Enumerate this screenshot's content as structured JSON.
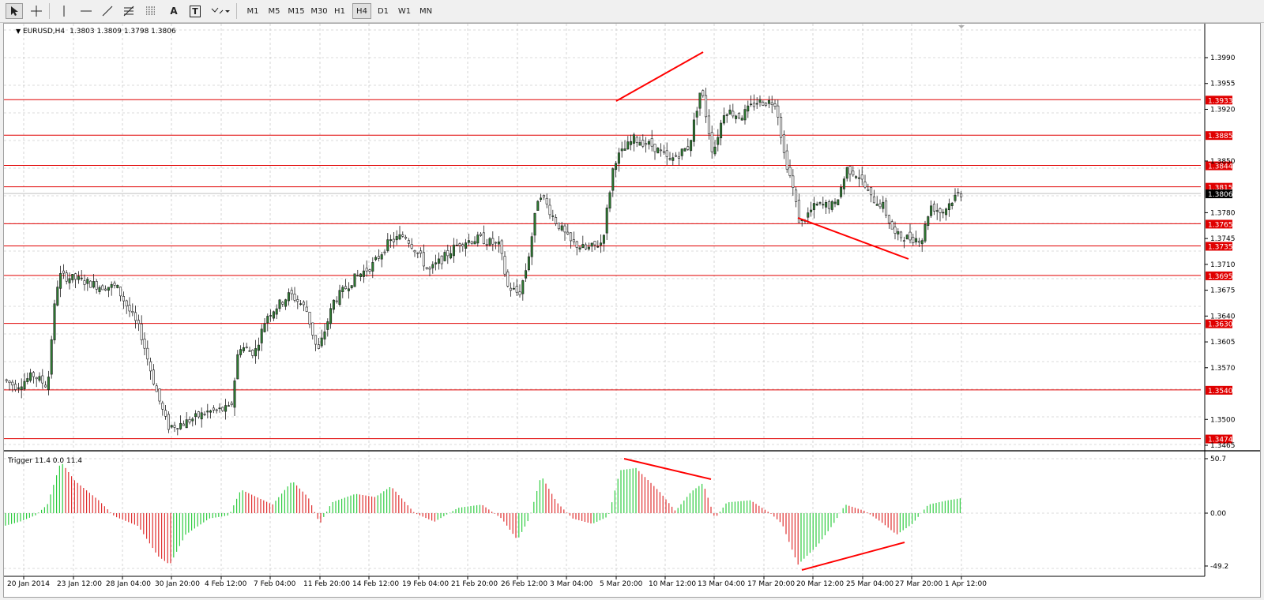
{
  "toolbar": {
    "timeframes": [
      "M1",
      "M5",
      "M15",
      "M30",
      "H1",
      "H4",
      "D1",
      "W1",
      "MN"
    ],
    "active_timeframe": "H4",
    "tools": [
      "cursor-icon",
      "crosshair-icon",
      "vertical-line-icon",
      "horizontal-line-icon",
      "trendline-icon",
      "fibonacci-icon",
      "fibonacci-fan-icon",
      "text-icon",
      "text-label-icon",
      "arrows-icon"
    ],
    "text_tool_label": "A",
    "label_tool_label": "T"
  },
  "main_chart": {
    "symbol_label": "EURUSD,H4",
    "ohlc": "1.3803 1.3809 1.3798 1.3806",
    "price_ticks": [
      "1.3990",
      "1.3955",
      "1.3920",
      "1.3850",
      "1.3780",
      "1.3745",
      "1.3710",
      "1.3675",
      "1.3640",
      "1.3605",
      "1.3570",
      "1.3500",
      "1.3465"
    ],
    "sr_levels": [
      "1.3933",
      "1.3885",
      "1.3844",
      "1.3815",
      "1.3765",
      "1.3735",
      "1.3695",
      "1.3630",
      "1.3540",
      "1.3474"
    ],
    "current_price": "1.3806",
    "colors": {
      "bull": "#2e7d32",
      "bear": "#c62828",
      "level": "#e00000",
      "grid": "#b8b8b8"
    }
  },
  "indicator": {
    "label": "Trigger 11.4 0.0 11.4",
    "ticks": [
      "50.7",
      "0.00",
      "-49.2"
    ],
    "colors": {
      "up": "#2ecc40",
      "down": "#e03030"
    }
  },
  "time_axis": [
    "20 Jan 2014",
    "23 Jan 12:00",
    "28 Jan 04:00",
    "30 Jan 20:00",
    "4 Feb 12:00",
    "7 Feb 04:00",
    "11 Feb 20:00",
    "14 Feb 12:00",
    "19 Feb 04:00",
    "21 Feb 20:00",
    "26 Feb 12:00",
    "3 Mar 04:00",
    "5 Mar 20:00",
    "10 Mar 12:00",
    "13 Mar 04:00",
    "17 Mar 20:00",
    "20 Mar 12:00",
    "25 Mar 04:00",
    "27 Mar 20:00",
    "1 Apr 12:00"
  ]
}
